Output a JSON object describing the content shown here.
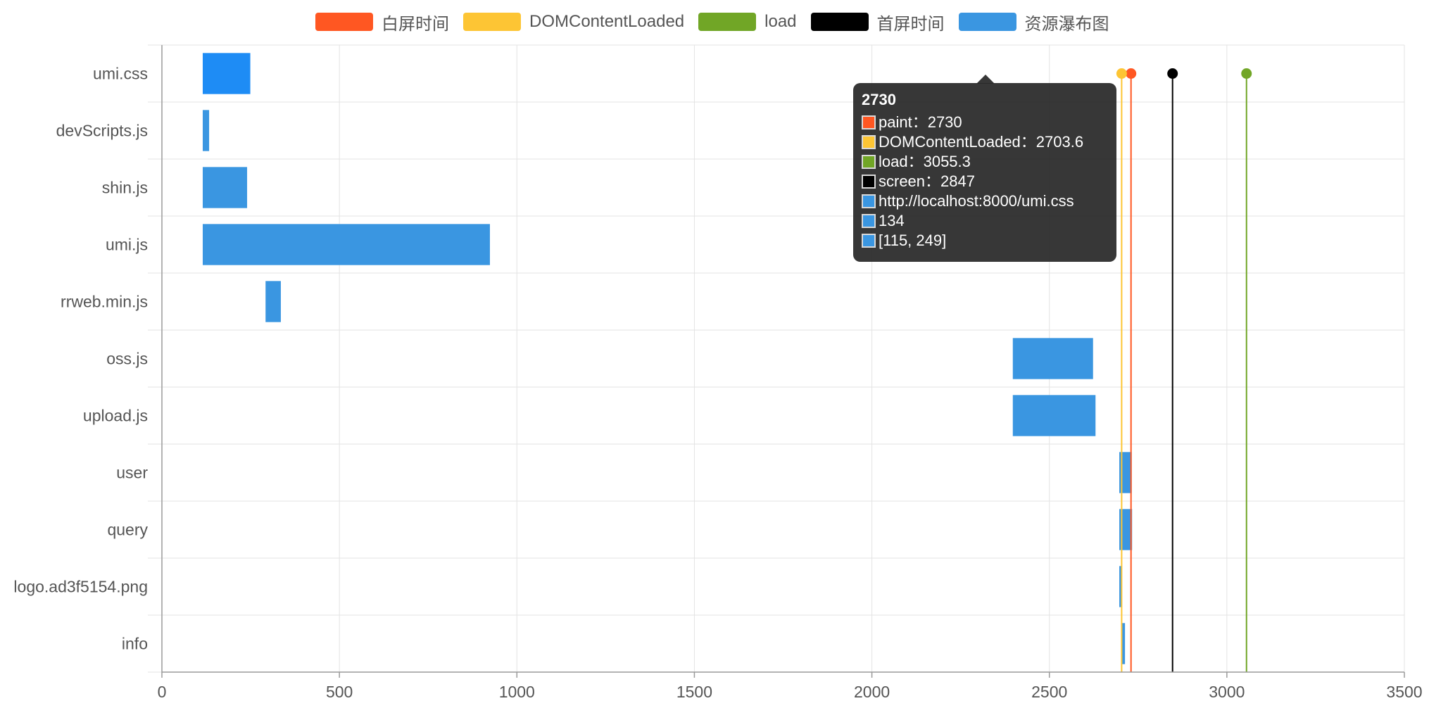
{
  "legend": [
    {
      "label": "白屏时间",
      "color": "#ff5722"
    },
    {
      "label": "DOMContentLoaded",
      "color": "#fdc534"
    },
    {
      "label": "load",
      "color": "#71a626"
    },
    {
      "label": "首屏时间",
      "color": "#000000"
    },
    {
      "label": "资源瀑布图",
      "color": "#3a96e1"
    }
  ],
  "tooltip": {
    "title": "2730",
    "rows": [
      {
        "text": "paint：2730",
        "color": "#ff5722"
      },
      {
        "text": "DOMContentLoaded：2703.6",
        "color": "#fdc534"
      },
      {
        "text": "load：3055.3",
        "color": "#71a626"
      },
      {
        "text": "screen：2847",
        "color": "#000000"
      },
      {
        "text": "http://localhost:8000/umi.css",
        "color": "#3a96e1"
      },
      {
        "text": "134",
        "color": "#3a96e1"
      },
      {
        "text": "[115, 249]",
        "color": "#3a96e1"
      }
    ]
  },
  "chart_data": {
    "type": "bar",
    "orientation": "horizontal",
    "grid": true,
    "legend_position": "top",
    "xlim": [
      0,
      3500
    ],
    "x_ticks": [
      0,
      500,
      1000,
      1500,
      2000,
      2500,
      3000,
      3500
    ],
    "categories": [
      "umi.css",
      "devScripts.js",
      "shin.js",
      "umi.js",
      "rrweb.min.js",
      "oss.js",
      "upload.js",
      "user",
      "query",
      "logo.ad3f5154.png",
      "info"
    ],
    "series": [
      {
        "name": "资源瀑布图",
        "color": "#3a96e1",
        "highlight_color": "#1e8cf5",
        "ranges": [
          [
            115,
            249
          ],
          [
            115,
            133
          ],
          [
            115,
            240
          ],
          [
            115,
            924
          ],
          [
            292,
            335
          ],
          [
            2397,
            2623
          ],
          [
            2397,
            2630
          ],
          [
            2697,
            2732
          ],
          [
            2697,
            2733
          ],
          [
            2697,
            2703
          ],
          [
            2705,
            2713
          ]
        ],
        "highlighted_index": 0
      }
    ],
    "markers": [
      {
        "name": "白屏时间",
        "key": "paint",
        "value": 2730,
        "color": "#ff5722"
      },
      {
        "name": "DOMContentLoaded",
        "key": "DOMContentLoaded",
        "value": 2703.6,
        "color": "#fdc534"
      },
      {
        "name": "load",
        "key": "load",
        "value": 3055.3,
        "color": "#71a626"
      },
      {
        "name": "首屏时间",
        "key": "screen",
        "value": 2847,
        "color": "#000000"
      }
    ]
  }
}
